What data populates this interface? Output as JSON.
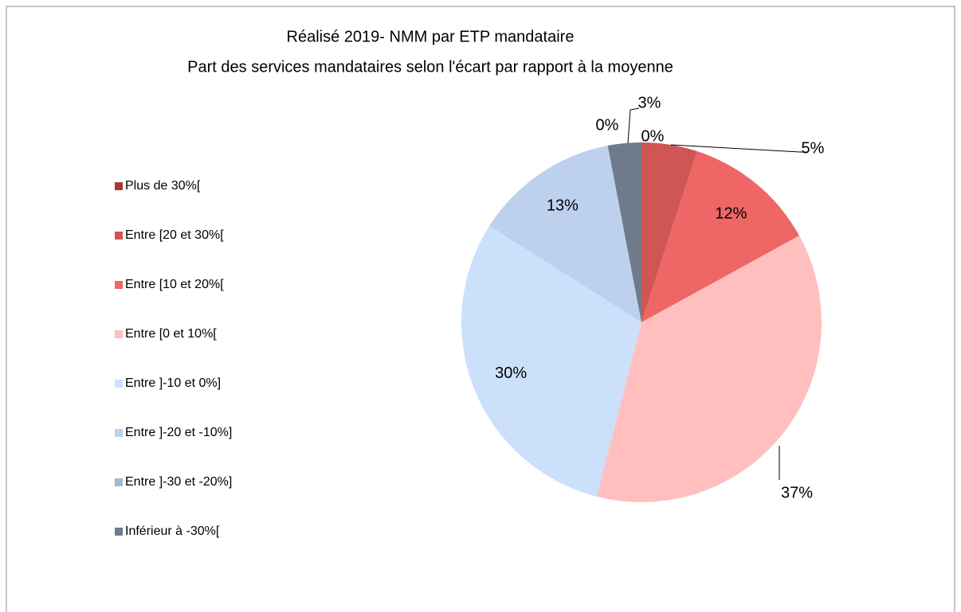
{
  "chart_data": {
    "type": "pie",
    "title": "Réalisé 2019- NMM par ETP mandataire",
    "subtitle": "Part des services mandataires selon l'écart par rapport à la moyenne",
    "categories": [
      "Plus de 30%[",
      "Entre [20 et 30%[",
      "Entre [10 et 20%[",
      "Entre [0 et 10%[",
      "Entre ]-10 et 0%]",
      "Entre ]-20 et -10%]",
      "Entre ]-30 et -20%]",
      "Inférieur à -30%["
    ],
    "values": [
      0,
      5,
      12,
      37,
      30,
      13,
      0,
      3
    ],
    "value_labels": [
      "0%",
      "5%",
      "12%",
      "37%",
      "30%",
      "13%",
      "0%",
      "3%"
    ],
    "colors": [
      "#a33a3a",
      "#d05555",
      "#ee6666",
      "#ffbfbf",
      "#cce0fb",
      "#bdd1ee",
      "#a5b8d2",
      "#6f7b8a"
    ],
    "legend": "left"
  }
}
